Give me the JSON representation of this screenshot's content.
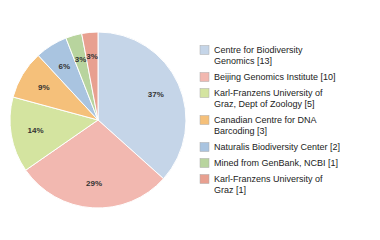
{
  "chart_data": {
    "type": "pie",
    "categories": [
      "Centre for Biodiversity\nGenomics [13]",
      "Beijing Genomics Institute [10]",
      "Karl-Franzens University of\nGraz, Dept of Zoology [5]",
      "Canadian Centre for DNA\nBarcoding [3]",
      "Naturalis Biodiversity Center [2]",
      "Mined from GenBank, NCBI [1]",
      "Karl-Franzens University of\nGraz [1]"
    ],
    "values": [
      37,
      29,
      14,
      9,
      6,
      3,
      3
    ],
    "value_labels": [
      "37%",
      "29%",
      "14%",
      "9%",
      "6%",
      "3%",
      "3%"
    ],
    "colors": [
      "#c5d5e8",
      "#f2b8b0",
      "#d4e4a0",
      "#f5c07a",
      "#a9c4e0",
      "#b8d49e",
      "#e8a090"
    ],
    "data_labels": true,
    "legend": "right"
  }
}
